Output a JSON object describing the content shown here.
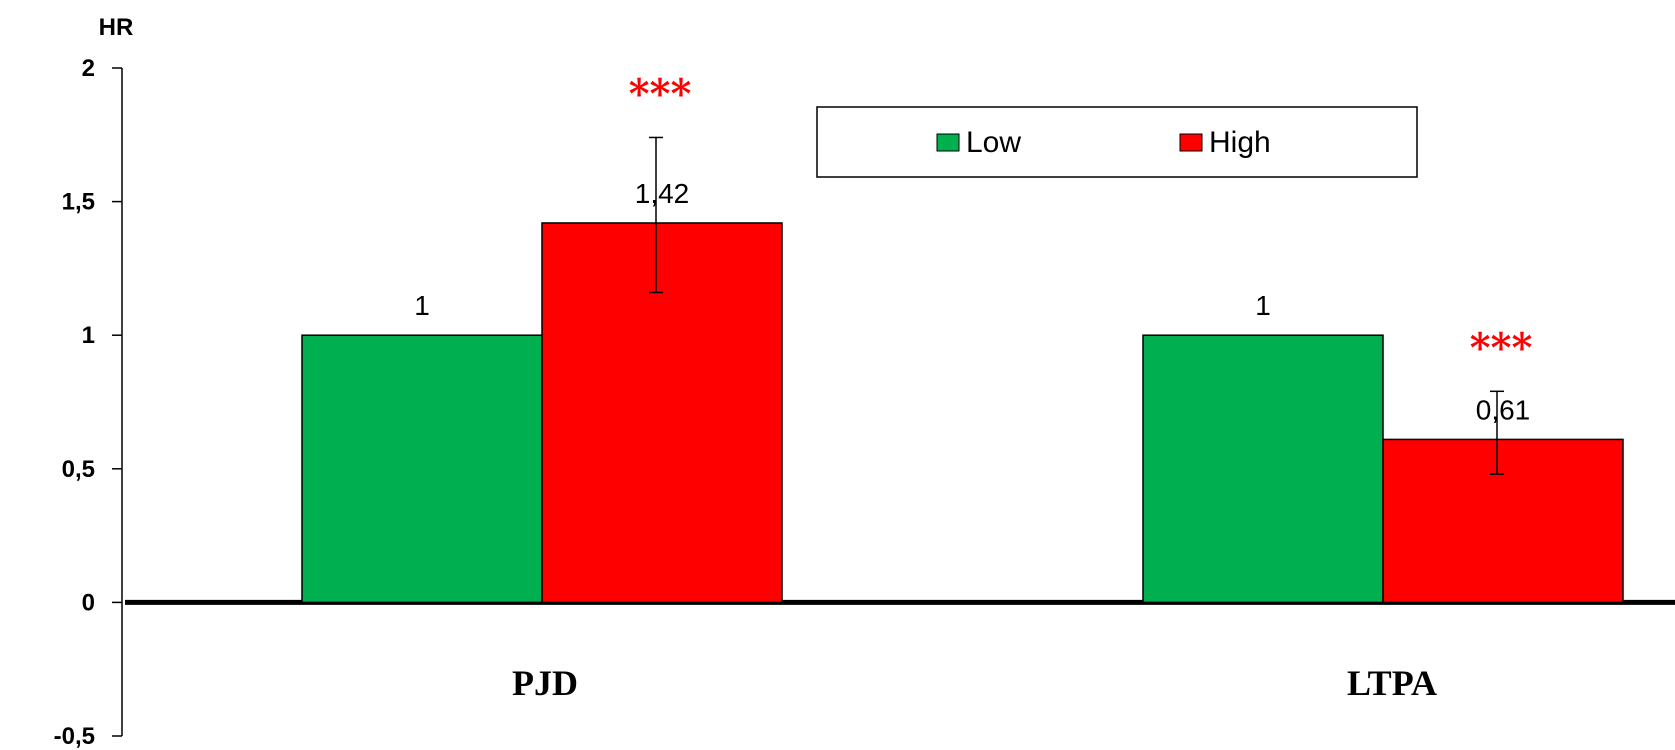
{
  "chart_data": {
    "type": "bar",
    "ylabel": "HR",
    "xlabel": "",
    "ylim": [
      -0.5,
      2
    ],
    "yticks": [
      -0.5,
      0,
      0.5,
      1,
      1.5,
      2
    ],
    "ytick_labels": [
      "-0,5",
      "0",
      "0,5",
      "1",
      "1,5",
      "2"
    ],
    "categories": [
      "PJD",
      "LTPA"
    ],
    "series": [
      {
        "name": "Low",
        "color": "#00b050",
        "values": [
          1,
          1
        ],
        "labels": [
          "1",
          "1"
        ],
        "error": [
          null,
          null
        ],
        "significance": [
          "",
          ""
        ]
      },
      {
        "name": "High",
        "color": "#ff0000",
        "values": [
          1.42,
          0.61
        ],
        "labels": [
          "1,42",
          "0,61"
        ],
        "error": [
          [
            1.16,
            1.74
          ],
          [
            0.48,
            0.79
          ]
        ],
        "significance": [
          "***",
          "***"
        ]
      }
    ],
    "legend": {
      "position": "top-center",
      "entries": [
        "Low",
        "High"
      ]
    },
    "grid": false,
    "significance_color": "#ff0000"
  }
}
